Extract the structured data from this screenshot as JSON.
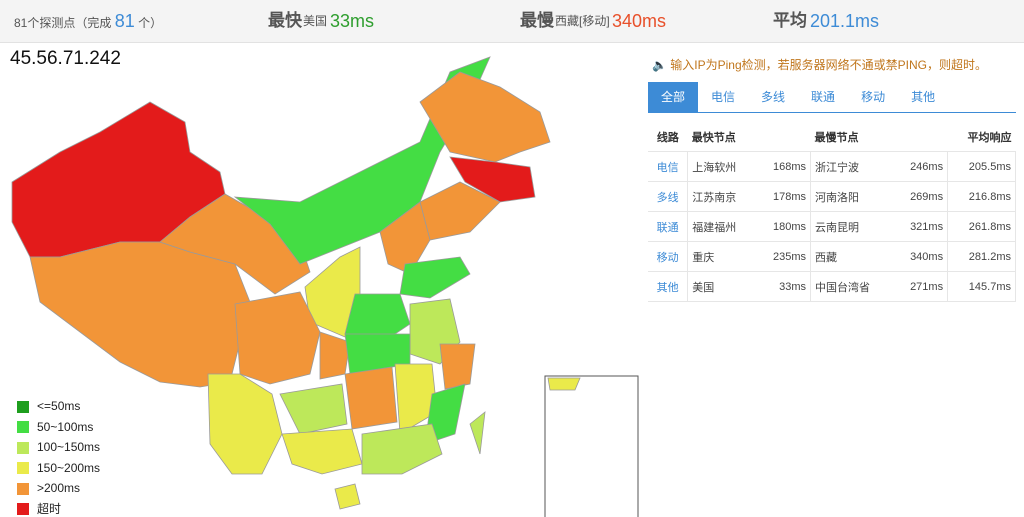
{
  "summary": {
    "probes": "81个探测点（完成",
    "completed": "81",
    "probes_end": "个）",
    "fastest": {
      "label": "最快",
      "location": "美国",
      "time": "33ms"
    },
    "slowest": {
      "label": "最慢",
      "location": "西藏[移动]",
      "time": "340ms"
    },
    "average": {
      "label": "平均",
      "time": "201.1ms"
    }
  },
  "ip": "45.56.71.242",
  "notice": "输入IP为Ping检测，若服务器网络不通或禁PING，则超时。",
  "tabs": [
    "全部",
    "电信",
    "多线",
    "联通",
    "移动",
    "其他"
  ],
  "table": {
    "headers": [
      "线路",
      "最快节点",
      "最慢节点",
      "平均响应"
    ],
    "rows": [
      [
        "电信",
        "上海软州",
        "168ms",
        "浙江宁波",
        "246ms",
        "205.5ms"
      ],
      [
        "多线",
        "江苏南京",
        "178ms",
        "河南洛阳",
        "269ms",
        "216.8ms"
      ],
      [
        "联通",
        "福建福州",
        "180ms",
        "云南昆明",
        "321ms",
        "261.8ms"
      ],
      [
        "移动",
        "重庆",
        "235ms",
        "西藏",
        "340ms",
        "281.2ms"
      ],
      [
        "其他",
        "美国",
        "33ms",
        "中国台湾省",
        "271ms",
        "145.7ms"
      ]
    ]
  },
  "legend": [
    {
      "label": "<=50ms",
      "color": "#1e9e1e"
    },
    {
      "label": "50~100ms",
      "color": "#44dd44"
    },
    {
      "label": "100~150ms",
      "color": "#bde85a"
    },
    {
      "label": "150~200ms",
      "color": "#eaea4a"
    },
    {
      "label": ">200ms",
      "color": "#f29538"
    },
    {
      "label": "超时",
      "color": "#e31b1b"
    }
  ]
}
